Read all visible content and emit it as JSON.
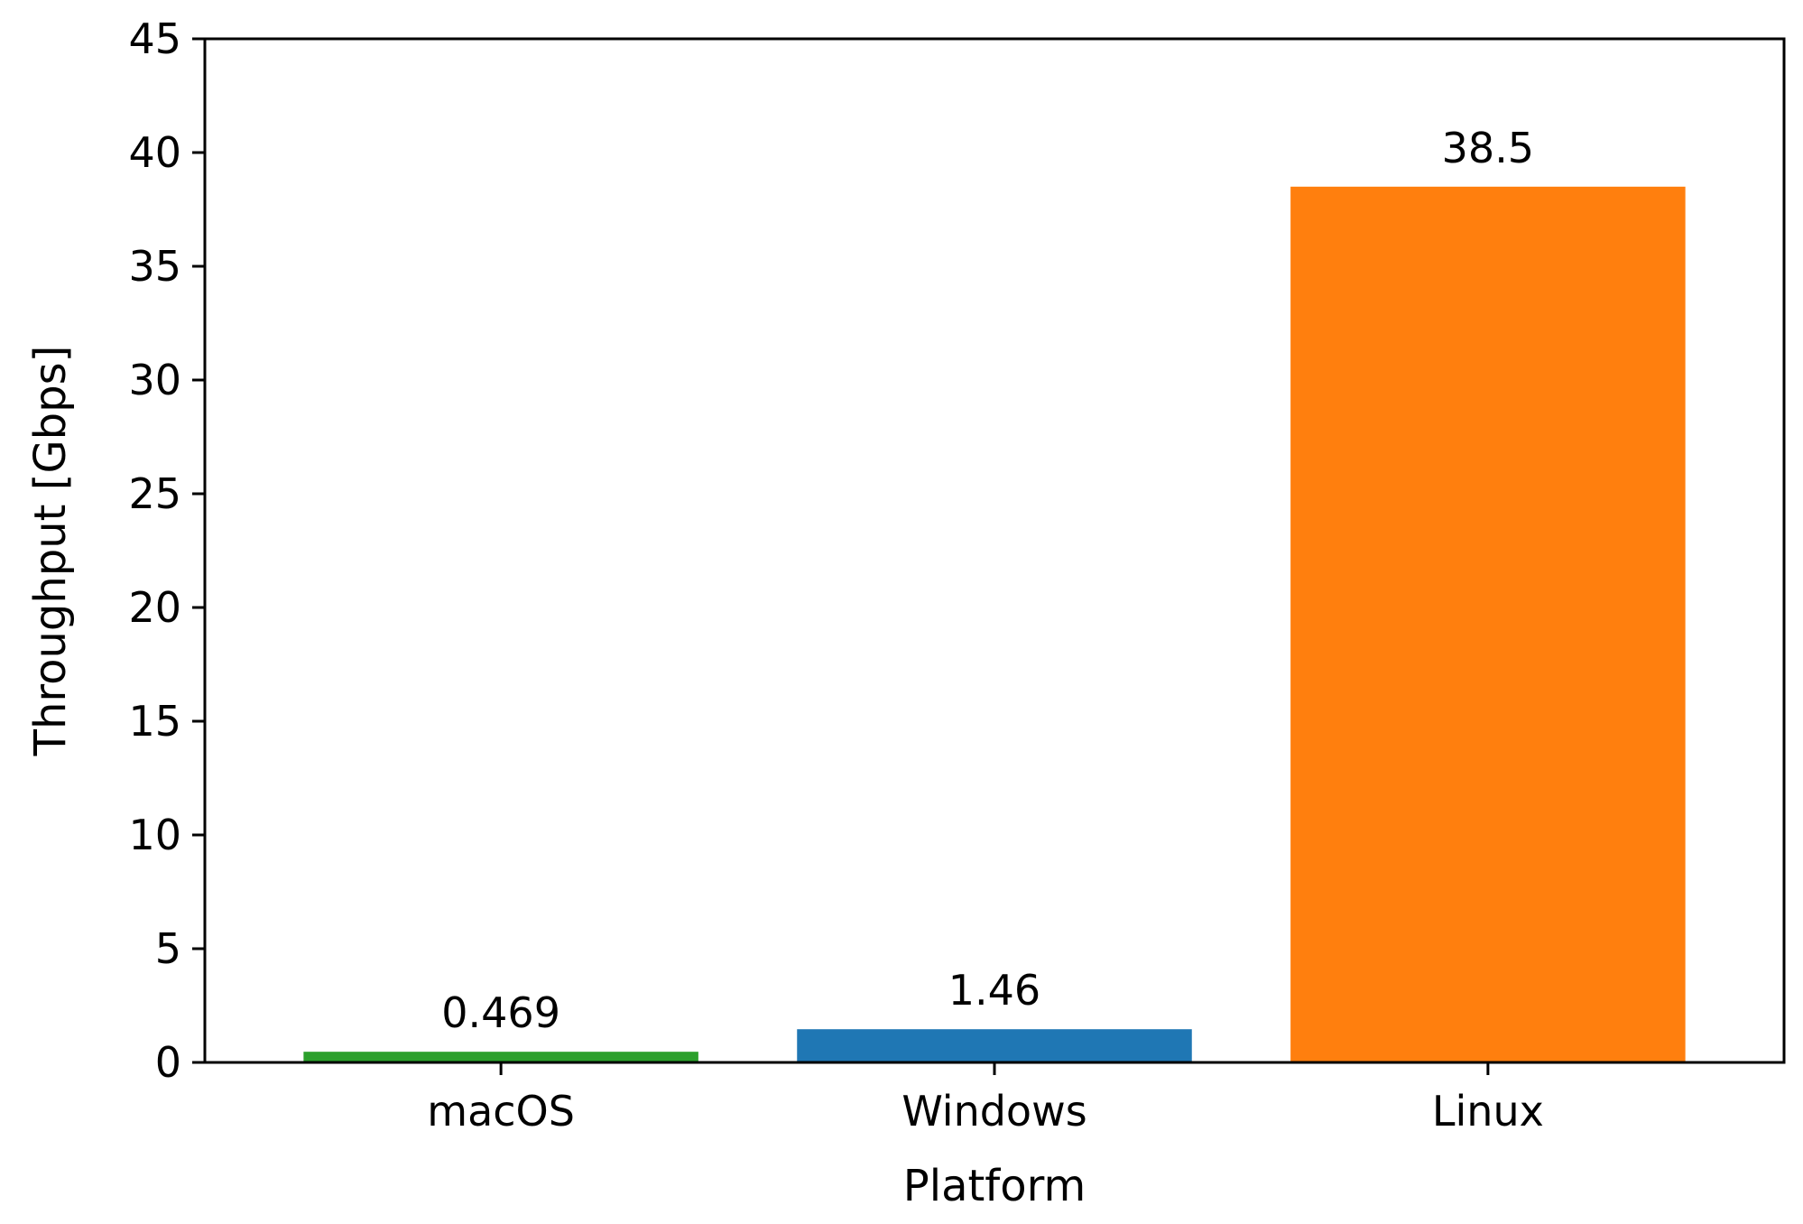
{
  "chart_data": {
    "type": "bar",
    "title": "",
    "xlabel": "Platform",
    "ylabel": "Throughput [Gbps]",
    "categories": [
      "macOS",
      "Windows",
      "Linux"
    ],
    "values": [
      0.469,
      1.46,
      38.5
    ],
    "value_labels": [
      "0.469",
      "1.46",
      "38.5"
    ],
    "bar_colors": [
      "#2ca02c",
      "#1f77b4",
      "#ff7f0e"
    ],
    "ylim": [
      0,
      45
    ],
    "yticks": [
      0,
      5,
      10,
      15,
      20,
      25,
      30,
      35,
      40,
      45
    ],
    "grid": false,
    "legend": "none"
  }
}
